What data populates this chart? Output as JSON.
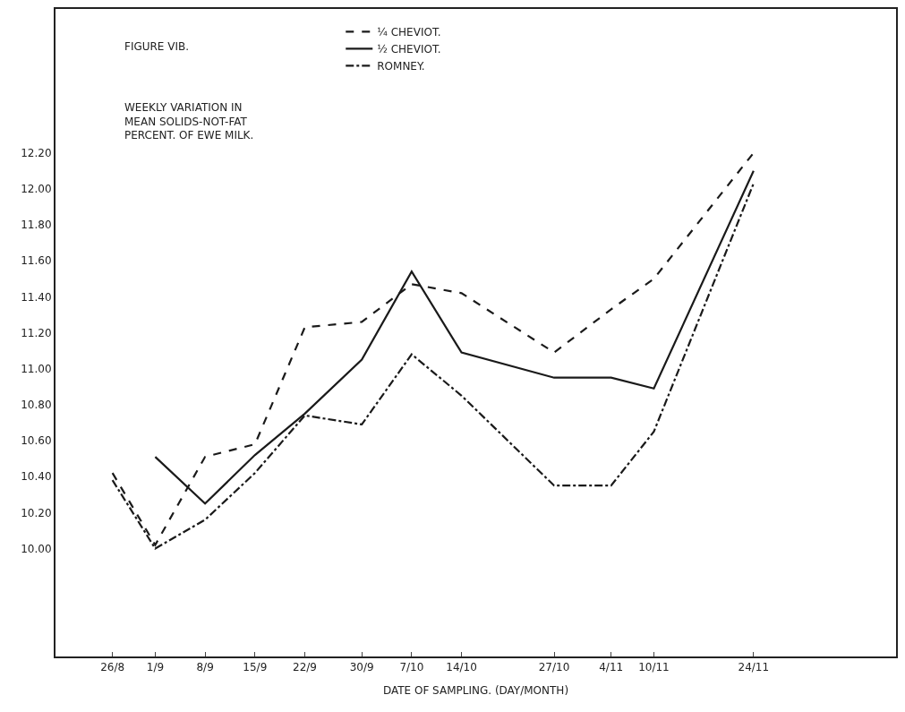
{
  "chart_data": {
    "type": "line",
    "title": "FIGURE VIB.",
    "subtitle": "WEEKLY VARIATION IN\nMEAN SOLIDS-NOT-FAT\nPERCENT. OF EWE MILK.",
    "xlabel": "DATE OF SAMPLING. (DAY/MONTH)",
    "x": [
      "--08-26",
      "--09-01",
      "--09-08",
      "--09-15",
      "--09-22",
      "--09-30",
      "--10-07",
      "--10-14",
      "--10-27",
      "--11-04",
      "--11-10",
      "--11-24"
    ],
    "series": [
      {
        "name": "¼ CHEVIOT.",
        "color": "#1a1a1a",
        "line_style": "dashed",
        "values": [
          10.42,
          10.02,
          10.51,
          10.58,
          11.23,
          11.26,
          11.47,
          11.42,
          11.09,
          11.33,
          11.5,
          12.2
        ]
      },
      {
        "name": "½ CHEVIOT.",
        "color": "#1a1a1a",
        "line_style": "solid",
        "values": [
          null,
          10.51,
          10.25,
          10.52,
          10.75,
          11.05,
          11.54,
          11.09,
          10.95,
          10.95,
          10.89,
          12.1
        ]
      },
      {
        "name": "ROMNEY.",
        "color": "#1a1a1a",
        "line_style": "dashdot",
        "values": [
          10.38,
          10.0,
          10.16,
          10.42,
          10.74,
          10.69,
          11.08,
          10.85,
          10.35,
          10.35,
          10.65,
          12.03
        ]
      }
    ],
    "xlim": [
      "--08-18",
      "--12-14"
    ],
    "xticks": [
      {
        "value": "--08-26",
        "label": "26/8"
      },
      {
        "value": "--09-01",
        "label": "1/9"
      },
      {
        "value": "--09-08",
        "label": "8/9"
      },
      {
        "value": "--09-15",
        "label": "15/9"
      },
      {
        "value": "--09-22",
        "label": "22/9"
      },
      {
        "value": "--09-30",
        "label": "30/9"
      },
      {
        "value": "--10-07",
        "label": "7/10"
      },
      {
        "value": "--10-14",
        "label": "14/10"
      },
      {
        "value": "--10-27",
        "label": "27/10"
      },
      {
        "value": "--11-04",
        "label": "4/11"
      },
      {
        "value": "--11-10",
        "label": "10/11"
      },
      {
        "value": "--11-24",
        "label": "24/11"
      }
    ],
    "ylim": [
      9.4,
      13.0
    ],
    "yticks": [
      {
        "value": 10.0,
        "label": "10.00"
      },
      {
        "value": 10.2,
        "label": "10.20"
      },
      {
        "value": 10.4,
        "label": "10.40"
      },
      {
        "value": 10.6,
        "label": "10.60"
      },
      {
        "value": 10.8,
        "label": "10.80"
      },
      {
        "value": 11.0,
        "label": "11.00"
      },
      {
        "value": 11.2,
        "label": "11.20"
      },
      {
        "value": 11.4,
        "label": "11.40"
      },
      {
        "value": 11.6,
        "label": "11.60"
      },
      {
        "value": 11.8,
        "label": "11.80"
      },
      {
        "value": 12.0,
        "label": "12.00"
      },
      {
        "value": 12.2,
        "label": "12.20"
      }
    ],
    "legend": "top",
    "marker": "none"
  }
}
